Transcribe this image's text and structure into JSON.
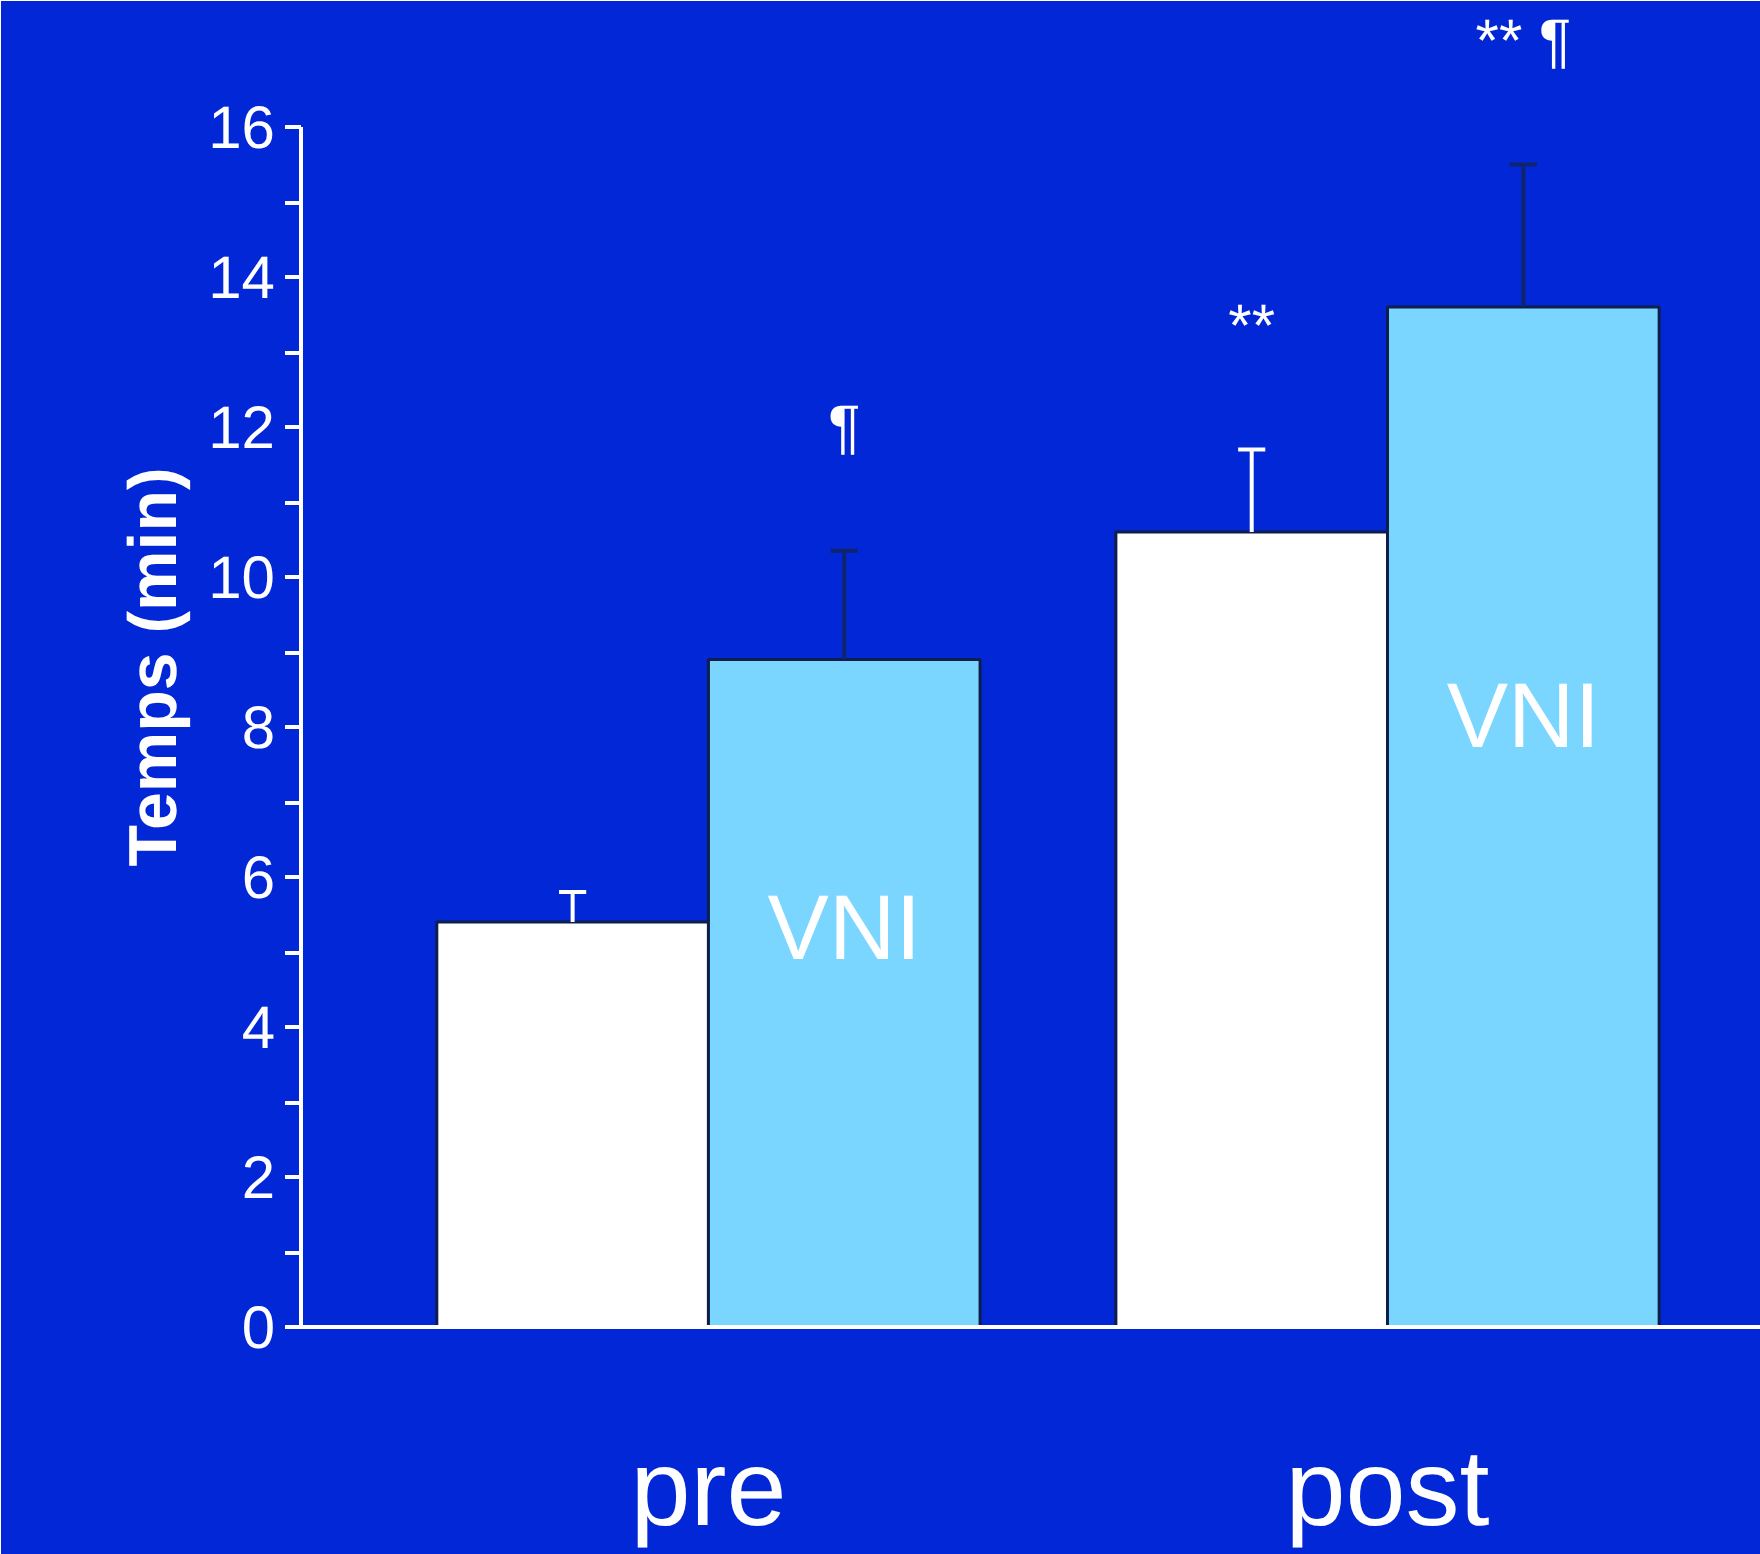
{
  "chart_data": {
    "type": "bar",
    "ylabel": "Temps (min)",
    "categories": [
      "pre",
      "post"
    ],
    "series": [
      {
        "color": "#ffffff",
        "values": [
          5.4,
          10.6
        ],
        "errors": [
          [
            5.4,
            5.8
          ],
          [
            10.6,
            11.7
          ]
        ]
      },
      {
        "name": "VNI",
        "color": "#7ad6fe",
        "values": [
          8.9,
          13.6
        ],
        "errors": [
          [
            8.9,
            10.35
          ],
          [
            13.6,
            15.5
          ]
        ]
      }
    ],
    "ylim": [
      0,
      16
    ],
    "yticks": [
      0,
      {
        "value": 1,
        "label": null
      },
      2,
      {
        "value": 3,
        "label": null
      },
      4,
      {
        "value": 5,
        "label": null
      },
      6,
      {
        "value": 7,
        "label": null
      },
      8,
      {
        "value": 9,
        "label": null
      },
      10,
      {
        "value": 11,
        "label": null
      },
      12,
      {
        "value": 13,
        "label": null
      },
      14,
      {
        "value": 15,
        "label": null
      },
      16
    ],
    "annotations": [
      "¶",
      "**",
      "** ¶"
    ],
    "grid": false
  }
}
